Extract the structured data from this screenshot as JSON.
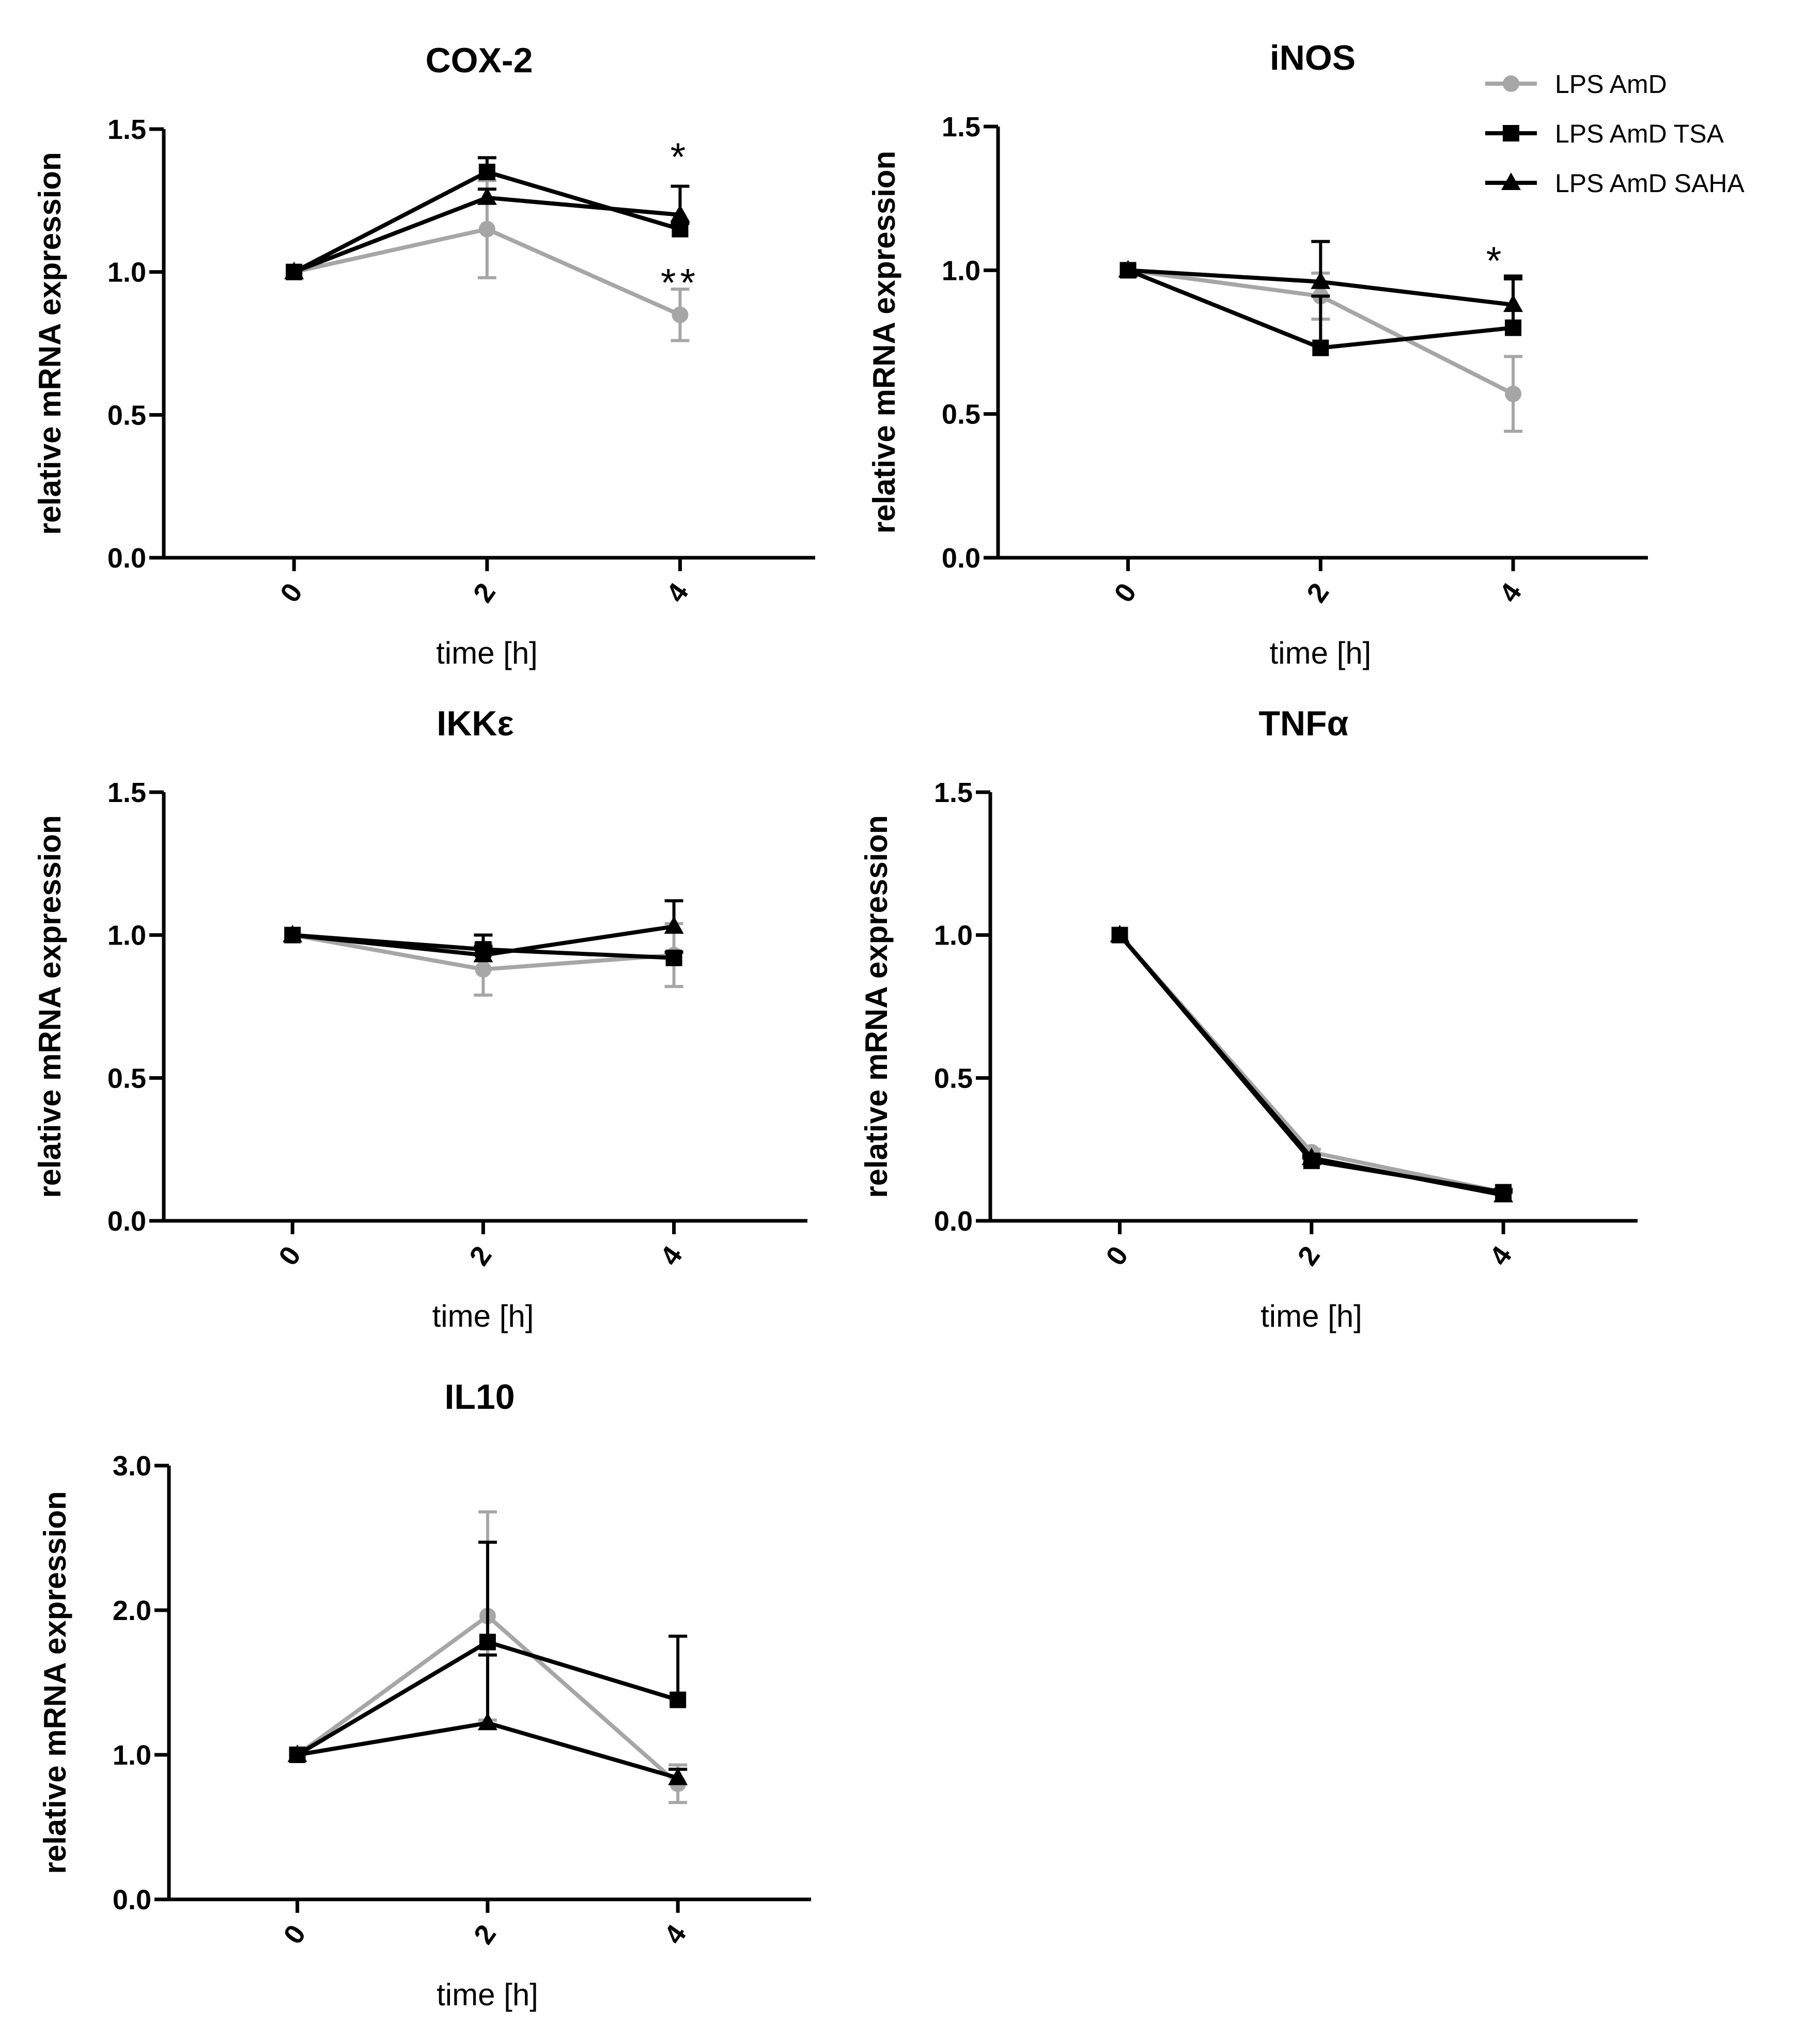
{
  "legend": [
    {
      "name": "LPS AmD",
      "marker": "circle",
      "color": "#a6a6a6"
    },
    {
      "name": "LPS AmD TSA",
      "marker": "square",
      "color": "#000000"
    },
    {
      "name": "LPS AmD SAHA",
      "marker": "triangle",
      "color": "#000000"
    }
  ],
  "chart_data": [
    {
      "type": "line",
      "title": "COX-2",
      "xlabel": "time [h]",
      "ylabel": "relative mRNA expression",
      "categories": [
        "0",
        "2",
        "4"
      ],
      "x": [
        0,
        2,
        4
      ],
      "xlim": [
        -1.35,
        5.4
      ],
      "ylim": [
        0,
        1.5
      ],
      "yticks": [
        "0.0",
        "0.5",
        "1.0",
        "1.5"
      ],
      "series": [
        {
          "name": "LPS AmD",
          "values": [
            1.0,
            1.15,
            0.85
          ],
          "error": [
            0,
            0.17,
            0.09
          ]
        },
        {
          "name": "LPS AmD TSA",
          "values": [
            1.0,
            1.35,
            1.15
          ],
          "error": [
            0,
            0.05,
            0.02
          ]
        },
        {
          "name": "LPS AmD SAHA",
          "values": [
            1.0,
            1.26,
            1.2
          ],
          "error": [
            0,
            0.03,
            0.1
          ]
        }
      ],
      "annotations": [
        {
          "text": "*",
          "x": 4,
          "y": 1.41
        },
        {
          "text": "**",
          "x": 4,
          "y": 0.97
        }
      ]
    },
    {
      "type": "line",
      "title": "iNOS",
      "xlabel": "time [h]",
      "ylabel": "relative mRNA expression",
      "categories": [
        "0",
        "2",
        "4"
      ],
      "x": [
        0,
        2,
        4
      ],
      "xlim": [
        -1.35,
        5.4
      ],
      "ylim": [
        0,
        1.5
      ],
      "yticks": [
        "0.0",
        "0.5",
        "1.0",
        "1.5"
      ],
      "series": [
        {
          "name": "LPS AmD",
          "values": [
            1.0,
            0.91,
            0.57
          ],
          "error": [
            0,
            0.08,
            0.13
          ]
        },
        {
          "name": "LPS AmD TSA",
          "values": [
            1.0,
            0.73,
            0.8
          ],
          "error": [
            0,
            0.18,
            0.18
          ]
        },
        {
          "name": "LPS AmD SAHA",
          "values": [
            1.0,
            0.96,
            0.88
          ],
          "error": [
            0,
            0.14,
            0.09
          ]
        }
      ],
      "annotations": [
        {
          "text": "*",
          "x": 3.82,
          "y": 1.04
        }
      ]
    },
    {
      "type": "line",
      "title": "IKKε",
      "xlabel": "time [h]",
      "ylabel": "relative mRNA expression",
      "categories": [
        "0",
        "2",
        "4"
      ],
      "x": [
        0,
        2,
        4
      ],
      "xlim": [
        -1.35,
        5.4
      ],
      "ylim": [
        0,
        1.5
      ],
      "yticks": [
        "0.0",
        "0.5",
        "1.0",
        "1.5"
      ],
      "series": [
        {
          "name": "LPS AmD",
          "values": [
            1.0,
            0.88,
            0.93
          ],
          "error": [
            0,
            0.09,
            0.11
          ]
        },
        {
          "name": "LPS AmD TSA",
          "values": [
            1.0,
            0.95,
            0.92
          ],
          "error": [
            0,
            0.05,
            0.02
          ]
        },
        {
          "name": "LPS AmD SAHA",
          "values": [
            1.0,
            0.93,
            1.03
          ],
          "error": [
            0,
            0.03,
            0.09
          ]
        }
      ],
      "annotations": []
    },
    {
      "type": "line",
      "title": "TNFα",
      "xlabel": "time [h]",
      "ylabel": "relative mRNA expression",
      "categories": [
        "0",
        "2",
        "4"
      ],
      "x": [
        0,
        2,
        4
      ],
      "xlim": [
        -1.35,
        5.4
      ],
      "ylim": [
        0,
        1.5
      ],
      "yticks": [
        "0.0",
        "0.5",
        "1.0",
        "1.5"
      ],
      "series": [
        {
          "name": "LPS AmD",
          "values": [
            1.0,
            0.24,
            0.1
          ],
          "error": [
            0,
            0.01,
            0.01
          ]
        },
        {
          "name": "LPS AmD TSA",
          "values": [
            1.0,
            0.21,
            0.1
          ],
          "error": [
            0,
            0.01,
            0.01
          ]
        },
        {
          "name": "LPS AmD SAHA",
          "values": [
            1.0,
            0.22,
            0.09
          ],
          "error": [
            0,
            0.01,
            0.01
          ]
        }
      ],
      "annotations": []
    },
    {
      "type": "line",
      "title": "IL10",
      "xlabel": "time [h]",
      "ylabel": "relative mRNA expression",
      "categories": [
        "0",
        "2",
        "4"
      ],
      "x": [
        0,
        2,
        4
      ],
      "xlim": [
        -1.35,
        5.4
      ],
      "ylim": [
        0,
        3.0
      ],
      "yticks": [
        "0.0",
        "1.0",
        "2.0",
        "3.0"
      ],
      "series": [
        {
          "name": "LPS AmD",
          "values": [
            1.0,
            1.96,
            0.8
          ],
          "error": [
            0,
            0.72,
            0.13
          ]
        },
        {
          "name": "LPS AmD TSA",
          "values": [
            1.0,
            1.78,
            1.38
          ],
          "error": [
            0,
            0.69,
            0.44
          ]
        },
        {
          "name": "LPS AmD SAHA",
          "values": [
            1.0,
            1.22,
            0.84
          ],
          "error": [
            0,
            0.47,
            0.06
          ]
        }
      ],
      "annotations": []
    }
  ]
}
